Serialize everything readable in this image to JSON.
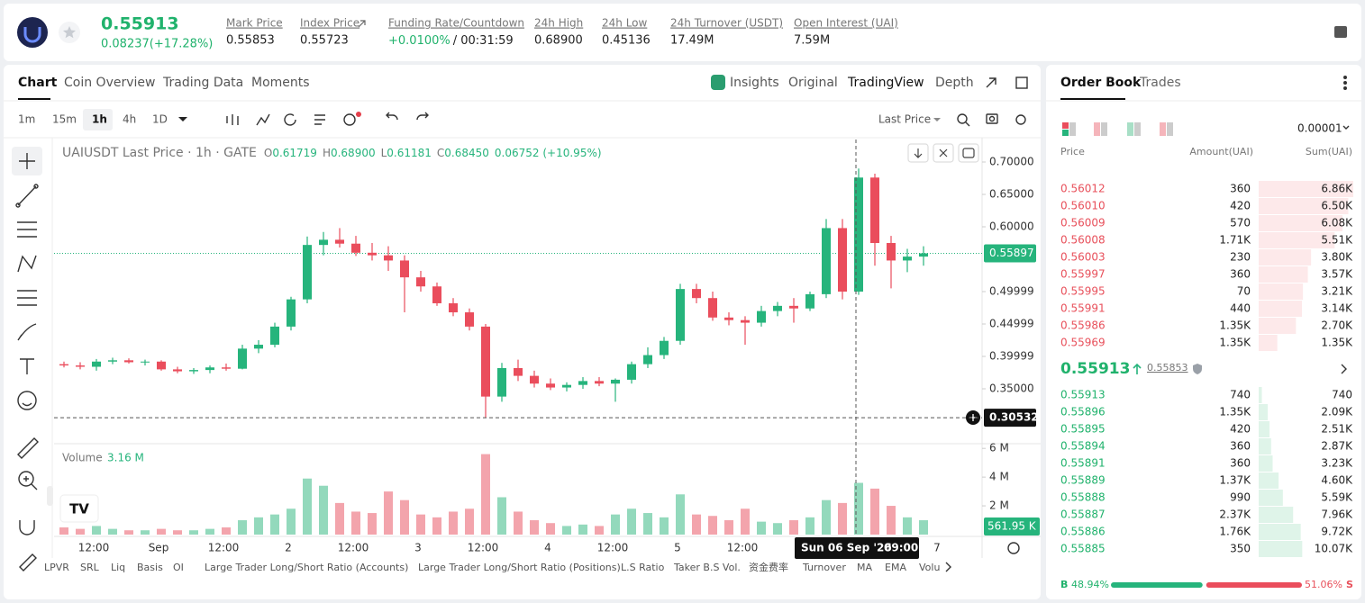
{
  "header": {
    "price": "0.55913",
    "change": "0.08237(+17.28%)",
    "stats": [
      {
        "label": "Mark Price",
        "value": "0.55853"
      },
      {
        "label": "Index Price",
        "value": "0.55723"
      },
      {
        "label": "Funding Rate/Countdown",
        "value": "+0.0100%",
        "value2": "/ 00:31:59"
      },
      {
        "label": "24h High",
        "value": "0.68900"
      },
      {
        "label": "24h Low",
        "value": "0.45136"
      },
      {
        "label": "24h Turnover (USDT)",
        "value": "17.49M"
      },
      {
        "label": "Open Interest (UAI)",
        "value": "7.59M"
      }
    ]
  },
  "tabs": [
    "Chart",
    "Coin Overview",
    "Trading Data",
    "Moments"
  ],
  "views": [
    "Insights",
    "Original",
    "TradingView",
    "Depth"
  ],
  "intervals": [
    "1m",
    "15m",
    "1h",
    "4h",
    "1D"
  ],
  "price_type": "Last Price",
  "chart_data": {
    "type": "candlestick",
    "legend": "UAIUSDT Last Price · 1h · GATE",
    "ohlc_labels": [
      "O",
      "H",
      "L",
      "C"
    ],
    "ohlc_values": [
      "0.61719",
      "0.68900",
      "0.61181",
      "0.68450"
    ],
    "legend_change": "0.06752 (+10.95%)",
    "up_color": "#26b47c",
    "down_color": "#ea4d5c",
    "open": [
      0.388,
      0.386,
      0.384,
      0.392,
      0.394,
      0.391,
      0.392,
      0.38,
      0.377,
      0.379,
      0.383,
      0.381,
      0.412,
      0.418,
      0.446,
      0.488,
      0.572,
      0.58,
      0.574,
      0.56,
      0.556,
      0.548,
      0.522,
      0.508,
      0.482,
      0.468,
      0.446,
      0.338,
      0.382,
      0.37,
      0.358,
      0.352,
      0.356,
      0.362,
      0.358,
      0.364,
      0.388,
      0.402,
      0.424,
      0.504,
      0.49,
      0.46,
      0.456,
      0.452,
      0.47,
      0.478,
      0.474,
      0.496,
      0.598,
      0.5,
      0.676,
      0.575,
      0.548,
      0.554
    ],
    "high": [
      0.392,
      0.391,
      0.396,
      0.398,
      0.397,
      0.395,
      0.394,
      0.384,
      0.382,
      0.386,
      0.389,
      0.418,
      0.425,
      0.452,
      0.492,
      0.585,
      0.592,
      0.598,
      0.586,
      0.575,
      0.57,
      0.556,
      0.532,
      0.514,
      0.49,
      0.474,
      0.45,
      0.39,
      0.395,
      0.378,
      0.366,
      0.36,
      0.368,
      0.368,
      0.366,
      0.392,
      0.414,
      0.43,
      0.512,
      0.512,
      0.5,
      0.468,
      0.462,
      0.478,
      0.484,
      0.49,
      0.5,
      0.612,
      0.612,
      0.69,
      0.682,
      0.586,
      0.566,
      0.57
    ],
    "low": [
      0.383,
      0.38,
      0.378,
      0.388,
      0.389,
      0.386,
      0.378,
      0.374,
      0.373,
      0.374,
      0.378,
      0.38,
      0.405,
      0.414,
      0.44,
      0.482,
      0.556,
      0.568,
      0.555,
      0.548,
      0.532,
      0.468,
      0.5,
      0.478,
      0.462,
      0.44,
      0.305,
      0.33,
      0.362,
      0.352,
      0.348,
      0.346,
      0.35,
      0.354,
      0.33,
      0.358,
      0.382,
      0.396,
      0.418,
      0.482,
      0.455,
      0.448,
      0.418,
      0.446,
      0.462,
      0.452,
      0.47,
      0.49,
      0.488,
      0.495,
      0.54,
      0.505,
      0.53,
      0.54
    ],
    "close": [
      0.386,
      0.384,
      0.392,
      0.394,
      0.391,
      0.392,
      0.38,
      0.377,
      0.379,
      0.383,
      0.381,
      0.412,
      0.418,
      0.446,
      0.488,
      0.572,
      0.58,
      0.574,
      0.56,
      0.556,
      0.548,
      0.522,
      0.508,
      0.482,
      0.468,
      0.446,
      0.338,
      0.382,
      0.37,
      0.358,
      0.352,
      0.356,
      0.362,
      0.358,
      0.364,
      0.388,
      0.402,
      0.424,
      0.504,
      0.49,
      0.46,
      0.456,
      0.452,
      0.47,
      0.478,
      0.474,
      0.496,
      0.598,
      0.5,
      0.676,
      0.575,
      0.548,
      0.554,
      0.559
    ],
    "volume": [
      0.5,
      0.4,
      0.6,
      0.4,
      0.3,
      0.3,
      0.4,
      0.3,
      0.3,
      0.4,
      0.5,
      1.0,
      1.2,
      1.4,
      1.8,
      3.9,
      3.4,
      2.2,
      1.6,
      1.5,
      3.0,
      2.4,
      1.4,
      1.2,
      1.6,
      1.8,
      5.6,
      2.6,
      1.6,
      1.0,
      0.8,
      0.6,
      0.7,
      0.6,
      1.4,
      1.8,
      1.5,
      1.2,
      2.8,
      1.4,
      1.3,
      1.0,
      1.8,
      0.9,
      0.8,
      1.0,
      1.2,
      2.4,
      2.2,
      3.6,
      3.2,
      2.0,
      1.2,
      1.0
    ],
    "ylim": [
      0.26667,
      0.73472
    ],
    "yticks": [
      {
        "value": 0.7,
        "label": "0.70000"
      },
      {
        "value": 0.65,
        "label": "0.65000"
      },
      {
        "value": 0.6,
        "label": "0.60000"
      },
      0.49999,
      0.44999,
      0.39999,
      {
        "value": 0.35,
        "label": "0.35000"
      }
    ],
    "last_price": 0.55897,
    "crosshair_price": 0.30532,
    "volume_title": "Volume",
    "volume_value": "3.16 M",
    "volume_last": "561.95 K",
    "volume_ylim": [
      0,
      6.2
    ],
    "volume_ticks": [
      {
        "value": 6,
        "label": "6 M"
      },
      {
        "value": 4,
        "label": "4 M"
      },
      {
        "value": 2,
        "label": "2 M"
      }
    ],
    "x_labels": [
      "12:00",
      "Sep",
      "12:00",
      "2",
      "12:00",
      "3",
      "12:00",
      "4",
      "12:00",
      "5",
      "12:00",
      null,
      null,
      "7"
    ],
    "crosshair_date": "Sun 06 Sep '26",
    "crosshair_time": "09:00"
  },
  "indicators": [
    "LPVR",
    "SRL",
    "Liq",
    "Basis",
    "OI",
    "Large Trader Long/Short Ratio (Accounts)",
    "Large Trader Long/Short Ratio (Positions)",
    "L.S Ratio",
    "Taker B.S Vol.",
    "资金费率",
    "Turnover",
    "MA",
    "EMA",
    "Volu"
  ],
  "order_book": {
    "tabs": [
      "Order Book",
      "Trades"
    ],
    "precision": "0.00001",
    "columns": [
      "Price",
      "Amount(UAI)",
      "Sum(UAI)"
    ],
    "asks": {
      "prices": [
        "0.56012",
        "0.56010",
        "0.56009",
        "0.56008",
        "0.56003",
        "0.55997",
        "0.55995",
        "0.55991",
        "0.55986",
        "0.55969"
      ],
      "amounts": [
        "360",
        "420",
        "570",
        "1.71K",
        "230",
        "360",
        "70",
        "440",
        "1.35K",
        "1.35K"
      ],
      "sums": [
        6860,
        6500,
        6080,
        5510,
        3800,
        3570,
        3210,
        3140,
        2700,
        1350
      ],
      "sum_labels": [
        "6.86K",
        "6.50K",
        "6.08K",
        "5.51K",
        "3.80K",
        "3.57K",
        "3.21K",
        "3.14K",
        "2.70K",
        "1.35K"
      ]
    },
    "mid_price": "0.55913",
    "mark_price": "0.55853",
    "bids": {
      "prices": [
        "0.55913",
        "0.55896",
        "0.55895",
        "0.55894",
        "0.55891",
        "0.55889",
        "0.55888",
        "0.55887",
        "0.55886",
        "0.55885"
      ],
      "amounts": [
        "740",
        "1.35K",
        "420",
        "360",
        "360",
        "1.37K",
        "990",
        "2.37K",
        "1.76K",
        "350"
      ],
      "sums": [
        740,
        2090,
        2510,
        2870,
        3230,
        4600,
        5590,
        7960,
        9720,
        10070
      ],
      "sum_labels": [
        "740",
        "2.09K",
        "2.51K",
        "2.87K",
        "3.23K",
        "4.60K",
        "5.59K",
        "7.96K",
        "9.72K",
        "10.07K"
      ]
    },
    "buy_letter": "B",
    "sell_letter": "S",
    "buy": 48.94,
    "sell": 51.06,
    "buy_label": "48.94%",
    "sell_label": "51.06%"
  }
}
